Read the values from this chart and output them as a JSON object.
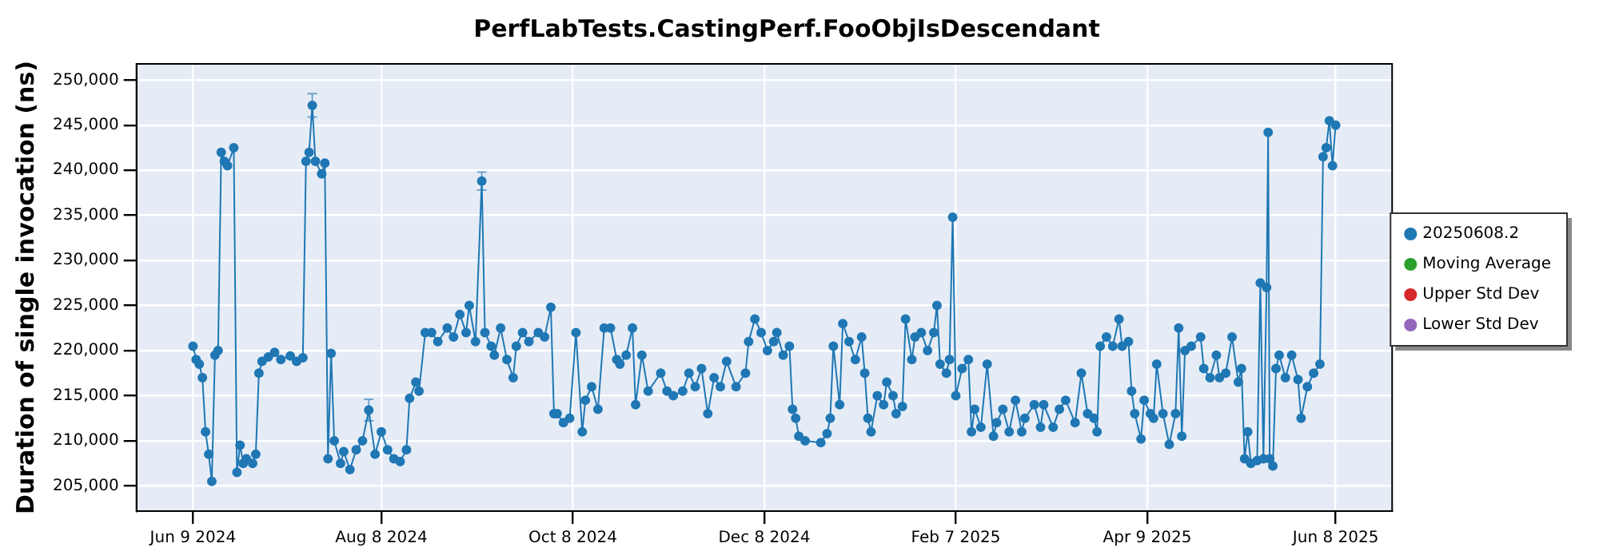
{
  "chart_data": {
    "type": "line",
    "title": "PerfLabTests.CastingPerf.FooObjIsDescendant",
    "ylabel": "Duration of single invocation (ns)",
    "xlim": [
      "2024-05-22",
      "2025-06-26"
    ],
    "xticks": [
      {
        "value": "2024-06-09",
        "label": "Jun 9 2024"
      },
      {
        "value": "2024-08-08",
        "label": "Aug 8 2024"
      },
      {
        "value": "2024-10-08",
        "label": "Oct 8 2024"
      },
      {
        "value": "2024-12-08",
        "label": "Dec 8 2024"
      },
      {
        "value": "2025-02-07",
        "label": "Feb 7 2025"
      },
      {
        "value": "2025-04-09",
        "label": "Apr 9 2025"
      },
      {
        "value": "2025-06-08",
        "label": "Jun 8 2025"
      }
    ],
    "ylim": [
      202200,
      251800
    ],
    "yticks": [
      {
        "value": 205000,
        "label": "205,000"
      },
      {
        "value": 210000,
        "label": "210,000"
      },
      {
        "value": 215000,
        "label": "215,000"
      },
      {
        "value": 220000,
        "label": "220,000"
      },
      {
        "value": 225000,
        "label": "225,000"
      },
      {
        "value": 230000,
        "label": "230,000"
      },
      {
        "value": 235000,
        "label": "235,000"
      },
      {
        "value": 240000,
        "label": "240,000"
      },
      {
        "value": 245000,
        "label": "245,000"
      },
      {
        "value": 250000,
        "label": "250,000"
      }
    ],
    "grid": true,
    "legend": "right",
    "marker": "circle",
    "line_style": "solid",
    "x": [
      "2024-06-09",
      "2024-06-10",
      "2024-06-11",
      "2024-06-12",
      "2024-06-13",
      "2024-06-14",
      "2024-06-15",
      "2024-06-16",
      "2024-06-17",
      "2024-06-18",
      "2024-06-19",
      "2024-06-20",
      "2024-06-22",
      "2024-06-23",
      "2024-06-24",
      "2024-06-25",
      "2024-06-26",
      "2024-06-28",
      "2024-06-29",
      "2024-06-30",
      "2024-07-01",
      "2024-07-03",
      "2024-07-05",
      "2024-07-07",
      "2024-07-10",
      "2024-07-12",
      "2024-07-14",
      "2024-07-15",
      "2024-07-16",
      "2024-07-17",
      "2024-07-18",
      "2024-07-20",
      "2024-07-21",
      "2024-07-22",
      "2024-07-23",
      "2024-07-24",
      "2024-07-26",
      "2024-07-27",
      "2024-07-29",
      "2024-07-31",
      "2024-08-02",
      "2024-08-04",
      "2024-08-06",
      "2024-08-08",
      "2024-08-10",
      "2024-08-12",
      "2024-08-14",
      "2024-08-16",
      "2024-08-17",
      "2024-08-19",
      "2024-08-20",
      "2024-08-22",
      "2024-08-24",
      "2024-08-26",
      "2024-08-29",
      "2024-08-31",
      "2024-09-02",
      "2024-09-04",
      "2024-09-05",
      "2024-09-07",
      "2024-09-09",
      "2024-09-10",
      "2024-09-12",
      "2024-09-13",
      "2024-09-15",
      "2024-09-17",
      "2024-09-19",
      "2024-09-20",
      "2024-09-22",
      "2024-09-24",
      "2024-09-27",
      "2024-09-29",
      "2024-10-01",
      "2024-10-02",
      "2024-10-03",
      "2024-10-05",
      "2024-10-07",
      "2024-10-09",
      "2024-10-11",
      "2024-10-12",
      "2024-10-14",
      "2024-10-16",
      "2024-10-18",
      "2024-10-20",
      "2024-10-22",
      "2024-10-23",
      "2024-10-25",
      "2024-10-27",
      "2024-10-28",
      "2024-10-30",
      "2024-11-01",
      "2024-11-05",
      "2024-11-07",
      "2024-11-09",
      "2024-11-12",
      "2024-11-14",
      "2024-11-16",
      "2024-11-18",
      "2024-11-20",
      "2024-11-22",
      "2024-11-24",
      "2024-11-26",
      "2024-11-29",
      "2024-12-02",
      "2024-12-03",
      "2024-12-05",
      "2024-12-07",
      "2024-12-09",
      "2024-12-11",
      "2024-12-12",
      "2024-12-14",
      "2024-12-16",
      "2024-12-17",
      "2024-12-18",
      "2024-12-19",
      "2024-12-21",
      "2024-12-26",
      "2024-12-28",
      "2024-12-29",
      "2024-12-30",
      "2025-01-01",
      "2025-01-02",
      "2025-01-04",
      "2025-01-06",
      "2025-01-08",
      "2025-01-09",
      "2025-01-10",
      "2025-01-11",
      "2025-01-13",
      "2025-01-15",
      "2025-01-16",
      "2025-01-18",
      "2025-01-19",
      "2025-01-21",
      "2025-01-22",
      "2025-01-24",
      "2025-01-25",
      "2025-01-27",
      "2025-01-29",
      "2025-01-31",
      "2025-02-01",
      "2025-02-02",
      "2025-02-04",
      "2025-02-05",
      "2025-02-06",
      "2025-02-07",
      "2025-02-09",
      "2025-02-11",
      "2025-02-12",
      "2025-02-13",
      "2025-02-15",
      "2025-02-17",
      "2025-02-19",
      "2025-02-20",
      "2025-02-22",
      "2025-02-24",
      "2025-02-26",
      "2025-02-28",
      "2025-03-01",
      "2025-03-04",
      "2025-03-06",
      "2025-03-07",
      "2025-03-10",
      "2025-03-12",
      "2025-03-14",
      "2025-03-17",
      "2025-03-19",
      "2025-03-21",
      "2025-03-23",
      "2025-03-24",
      "2025-03-25",
      "2025-03-27",
      "2025-03-29",
      "2025-03-31",
      "2025-04-01",
      "2025-04-03",
      "2025-04-04",
      "2025-04-05",
      "2025-04-07",
      "2025-04-08",
      "2025-04-10",
      "2025-04-11",
      "2025-04-12",
      "2025-04-14",
      "2025-04-16",
      "2025-04-18",
      "2025-04-19",
      "2025-04-20",
      "2025-04-21",
      "2025-04-23",
      "2025-04-26",
      "2025-04-27",
      "2025-04-29",
      "2025-05-01",
      "2025-05-02",
      "2025-05-04",
      "2025-05-06",
      "2025-05-08",
      "2025-05-09",
      "2025-05-10",
      "2025-05-11",
      "2025-05-12",
      "2025-05-14",
      "2025-05-15",
      "2025-05-16",
      "2025-05-17",
      "2025-05-17T12:00",
      "2025-05-18",
      "2025-05-19",
      "2025-05-20",
      "2025-05-21",
      "2025-05-23",
      "2025-05-25",
      "2025-05-27",
      "2025-05-28",
      "2025-05-30",
      "2025-06-01",
      "2025-06-03",
      "2025-06-04",
      "2025-06-05",
      "2025-06-06",
      "2025-06-07",
      "2025-06-08"
    ],
    "series": [
      {
        "name": "20250608.2",
        "color": "#1f77b4",
        "values": [
          220500,
          219000,
          218500,
          217000,
          211000,
          208500,
          205500,
          219500,
          220000,
          242000,
          241000,
          240500,
          242500,
          206500,
          209500,
          207500,
          208000,
          207500,
          208500,
          217500,
          218800,
          219300,
          219800,
          219000,
          219400,
          218800,
          219200,
          241000,
          242000,
          247200,
          241000,
          239600,
          240800,
          208000,
          219700,
          210000,
          207500,
          208800,
          206800,
          209000,
          210000,
          213400,
          208500,
          211000,
          209000,
          208000,
          207700,
          209000,
          214700,
          216500,
          215500,
          222000,
          222000,
          221000,
          222500,
          221500,
          224000,
          222000,
          225000,
          221000,
          238800,
          222000,
          220500,
          219500,
          222500,
          219000,
          217000,
          220500,
          222000,
          221000,
          222000,
          221500,
          224800,
          213000,
          213000,
          212000,
          212500,
          222000,
          211000,
          214500,
          216000,
          213500,
          222500,
          222500,
          219000,
          218500,
          219500,
          222500,
          214000,
          219500,
          215500,
          217500,
          215500,
          215000,
          215500,
          217500,
          216000,
          218000,
          213000,
          217000,
          216000,
          218800,
          216000,
          217500,
          221000,
          223500,
          222000,
          220000,
          221000,
          222000,
          219500,
          220500,
          213500,
          212500,
          210500,
          210000,
          209800,
          210800,
          212500,
          220500,
          214000,
          223000,
          221000,
          219000,
          221500,
          217500,
          212500,
          211000,
          215000,
          214000,
          216500,
          215000,
          213000,
          213800,
          223500,
          219000,
          221500,
          222000,
          220000,
          222000,
          225000,
          218500,
          217500,
          219000,
          234800,
          215000,
          218000,
          219000,
          211000,
          213500,
          211500,
          218500,
          210500,
          212000,
          213500,
          211000,
          214500,
          211000,
          212500,
          214000,
          211500,
          214000,
          211500,
          213500,
          214500,
          212000,
          217500,
          213000,
          212500,
          211000,
          220500,
          221500,
          220500,
          223500,
          220500,
          221000,
          215500,
          213000,
          210200,
          214500,
          213000,
          212500,
          218500,
          213000,
          209600,
          213000,
          222500,
          210500,
          220000,
          220500,
          221500,
          218000,
          217000,
          219500,
          217000,
          217500,
          221500,
          216500,
          218000,
          208000,
          211000,
          207500,
          207800,
          227500,
          208000,
          227000,
          244200,
          208000,
          207200,
          218000,
          219500,
          217000,
          219500,
          216800,
          212500,
          216000,
          217500,
          218500,
          241500,
          242500,
          245500,
          240500,
          245000
        ],
        "errors": [
          null,
          null,
          null,
          null,
          null,
          null,
          null,
          null,
          null,
          null,
          null,
          null,
          null,
          null,
          null,
          null,
          null,
          null,
          null,
          null,
          null,
          null,
          null,
          null,
          null,
          null,
          null,
          null,
          null,
          1300,
          null,
          null,
          null,
          null,
          null,
          null,
          null,
          null,
          null,
          null,
          null,
          1200,
          null,
          null,
          null,
          null,
          null,
          null,
          null,
          null,
          null,
          null,
          null,
          null,
          null,
          null,
          null,
          null,
          null,
          null,
          1000,
          null,
          null,
          null,
          null,
          null,
          null,
          null,
          null,
          null,
          null,
          null,
          null,
          null,
          null,
          null,
          null,
          null,
          null,
          null,
          null,
          null,
          null,
          null,
          null,
          null,
          null,
          null,
          null,
          null,
          null,
          null,
          null,
          null,
          null,
          null,
          null,
          null,
          null,
          null,
          null,
          null,
          null,
          null,
          null,
          null,
          null,
          null,
          null,
          null,
          null,
          null,
          null,
          null,
          null,
          null,
          null,
          null,
          null,
          null,
          null,
          null,
          null,
          null,
          null,
          null,
          null,
          null,
          null,
          null,
          null,
          null,
          null,
          null,
          null,
          null,
          null,
          null,
          null,
          null,
          null,
          null,
          null,
          null,
          null,
          null,
          null,
          null,
          null,
          null,
          null,
          null,
          null,
          null,
          null,
          null,
          null,
          null,
          null,
          null,
          null,
          null,
          null,
          null,
          null,
          null,
          null,
          null,
          null,
          null,
          null,
          null,
          null,
          null,
          null,
          null,
          null,
          null,
          null,
          null,
          null,
          null,
          null,
          null,
          null,
          null,
          null,
          null,
          null,
          null,
          null,
          null,
          null,
          null,
          null,
          null,
          null,
          null,
          null,
          null,
          null,
          null,
          null,
          null,
          null,
          null,
          null,
          null,
          null,
          null,
          null,
          null,
          null,
          null,
          null,
          null,
          null,
          null,
          null,
          null,
          null,
          null,
          null
        ]
      },
      {
        "name": "Moving Average",
        "color": "#2ca02c",
        "values": [
          null,
          null,
          null,
          null,
          null,
          null,
          null,
          null,
          null,
          null,
          null,
          null,
          null,
          null,
          null,
          null,
          null,
          null,
          null,
          null,
          null,
          null,
          null,
          null,
          null,
          null,
          null,
          null,
          null,
          null,
          null,
          null,
          null,
          null,
          null,
          null,
          null,
          null,
          null,
          null,
          null,
          null,
          null,
          null,
          null,
          null,
          null,
          null,
          null,
          null,
          null,
          null,
          null,
          null,
          null,
          null,
          null,
          null,
          null,
          null,
          null,
          null,
          null,
          null,
          null,
          null,
          null,
          null,
          null,
          null,
          null,
          null,
          null,
          null,
          null,
          null,
          null,
          null,
          null,
          null,
          null,
          null,
          null,
          null,
          null,
          null,
          null,
          null,
          null,
          null,
          null,
          null,
          null,
          null,
          null,
          null,
          null,
          null,
          null,
          null,
          null,
          null,
          null,
          null,
          null,
          null,
          null,
          null,
          null,
          null,
          null,
          null,
          null,
          null,
          null,
          null,
          null,
          null,
          null,
          null,
          null,
          null,
          null,
          null,
          null,
          null,
          null,
          null,
          null,
          null,
          null,
          null,
          null,
          null,
          null,
          null,
          null,
          null,
          null,
          null,
          null,
          null,
          null,
          null,
          null,
          null,
          null,
          null,
          null,
          null,
          null,
          null,
          null,
          null,
          null,
          null,
          null,
          null,
          null,
          null,
          null,
          null,
          null,
          null,
          null,
          null,
          null,
          null,
          null,
          null,
          null,
          null,
          null,
          null,
          null,
          null,
          null,
          null,
          null,
          null,
          null,
          null,
          null,
          null,
          null,
          null,
          null,
          null,
          null,
          null,
          null,
          null,
          null,
          null,
          null,
          null,
          null,
          null,
          null,
          null,
          null,
          null,
          null,
          null,
          null,
          null,
          null,
          null,
          null,
          null,
          null,
          null,
          null,
          null,
          null,
          null,
          null,
          null,
          null,
          null,
          null,
          null,
          null
        ]
      },
      {
        "name": "Upper Std Dev",
        "color": "#d62728",
        "values": [
          null,
          null,
          null,
          null,
          null,
          null,
          null,
          null,
          null,
          null,
          null,
          null,
          null,
          null,
          null,
          null,
          null,
          null,
          null,
          null,
          null,
          null,
          null,
          null,
          null,
          null,
          null,
          null,
          null,
          null,
          null,
          null,
          null,
          null,
          null,
          null,
          null,
          null,
          null,
          null,
          null,
          null,
          null,
          null,
          null,
          null,
          null,
          null,
          null,
          null,
          null,
          null,
          null,
          null,
          null,
          null,
          null,
          null,
          null,
          null,
          null,
          null,
          null,
          null,
          null,
          null,
          null,
          null,
          null,
          null,
          null,
          null,
          null,
          null,
          null,
          null,
          null,
          null,
          null,
          null,
          null,
          null,
          null,
          null,
          null,
          null,
          null,
          null,
          null,
          null,
          null,
          null,
          null,
          null,
          null,
          null,
          null,
          null,
          null,
          null,
          null,
          null,
          null,
          null,
          null,
          null,
          null,
          null,
          null,
          null,
          null,
          null,
          null,
          null,
          null,
          null,
          null,
          null,
          null,
          null,
          null,
          null,
          null,
          null,
          null,
          null,
          null,
          null,
          null,
          null,
          null,
          null,
          null,
          null,
          null,
          null,
          null,
          null,
          null,
          null,
          null,
          null,
          null,
          null,
          null,
          null,
          null,
          null,
          null,
          null,
          null,
          null,
          null,
          null,
          null,
          null,
          null,
          null,
          null,
          null,
          null,
          null,
          null,
          null,
          null,
          null,
          null,
          null,
          null,
          null,
          null,
          null,
          null,
          null,
          null,
          null,
          null,
          null,
          null,
          null,
          null,
          null,
          null,
          null,
          null,
          null,
          null,
          null,
          null,
          null,
          null,
          null,
          null,
          null,
          null,
          null,
          null,
          null,
          null,
          null,
          null,
          null,
          null,
          null,
          null,
          null,
          null,
          null,
          null,
          null,
          null,
          null,
          null,
          null,
          null,
          null,
          null,
          null,
          null,
          null,
          null,
          null,
          null
        ]
      },
      {
        "name": "Lower Std Dev",
        "color": "#9467bd",
        "values": [
          null,
          null,
          null,
          null,
          null,
          null,
          null,
          null,
          null,
          null,
          null,
          null,
          null,
          null,
          null,
          null,
          null,
          null,
          null,
          null,
          null,
          null,
          null,
          null,
          null,
          null,
          null,
          null,
          null,
          null,
          null,
          null,
          null,
          null,
          null,
          null,
          null,
          null,
          null,
          null,
          null,
          null,
          null,
          null,
          null,
          null,
          null,
          null,
          null,
          null,
          null,
          null,
          null,
          null,
          null,
          null,
          null,
          null,
          null,
          null,
          null,
          null,
          null,
          null,
          null,
          null,
          null,
          null,
          null,
          null,
          null,
          null,
          null,
          null,
          null,
          null,
          null,
          null,
          null,
          null,
          null,
          null,
          null,
          null,
          null,
          null,
          null,
          null,
          null,
          null,
          null,
          null,
          null,
          null,
          null,
          null,
          null,
          null,
          null,
          null,
          null,
          null,
          null,
          null,
          null,
          null,
          null,
          null,
          null,
          null,
          null,
          null,
          null,
          null,
          null,
          null,
          null,
          null,
          null,
          null,
          null,
          null,
          null,
          null,
          null,
          null,
          null,
          null,
          null,
          null,
          null,
          null,
          null,
          null,
          null,
          null,
          null,
          null,
          null,
          null,
          null,
          null,
          null,
          null,
          null,
          null,
          null,
          null,
          null,
          null,
          null,
          null,
          null,
          null,
          null,
          null,
          null,
          null,
          null,
          null,
          null,
          null,
          null,
          null,
          null,
          null,
          null,
          null,
          null,
          null,
          null,
          null,
          null,
          null,
          null,
          null,
          null,
          null,
          null,
          null,
          null,
          null,
          null,
          null,
          null,
          null,
          null,
          null,
          null,
          null,
          null,
          null,
          null,
          null,
          null,
          null,
          null,
          null,
          null,
          null,
          null,
          null,
          null,
          null,
          null,
          null,
          null,
          null,
          null,
          null,
          null,
          null,
          null,
          null,
          null,
          null,
          null,
          null,
          null,
          null,
          null,
          null,
          null
        ]
      }
    ]
  }
}
